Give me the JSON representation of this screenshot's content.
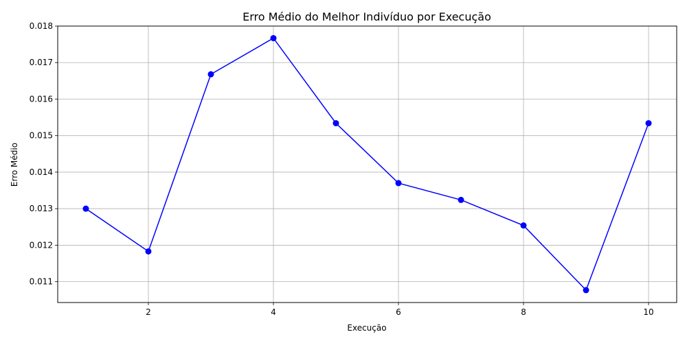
{
  "chart_data": {
    "type": "line",
    "title": "Erro Médio do Melhor Indivíduo por Execução",
    "xlabel": "Execução",
    "ylabel": "Erro Médio",
    "x": [
      1,
      2,
      3,
      4,
      5,
      6,
      7,
      8,
      9,
      10
    ],
    "series": [
      {
        "values": [
          0.013,
          0.01183,
          0.01668,
          0.01767,
          0.01534,
          0.0137,
          0.01324,
          0.01254,
          0.01077,
          0.01534
        ],
        "color": "#0000ff",
        "marker": "circle"
      }
    ],
    "xlim": [
      0.55,
      10.45
    ],
    "ylim": [
      0.01043,
      0.018
    ],
    "xticks": [
      2,
      4,
      6,
      8,
      10
    ],
    "xtick_labels": [
      "2",
      "4",
      "6",
      "8",
      "10"
    ],
    "yticks": [
      0.011,
      0.012,
      0.013,
      0.014,
      0.015,
      0.016,
      0.017,
      0.018
    ],
    "ytick_labels": [
      "0.011",
      "0.012",
      "0.013",
      "0.014",
      "0.015",
      "0.016",
      "0.017",
      "0.018"
    ],
    "grid": true,
    "grid_color": "#b0b0b0",
    "legend": false
  }
}
